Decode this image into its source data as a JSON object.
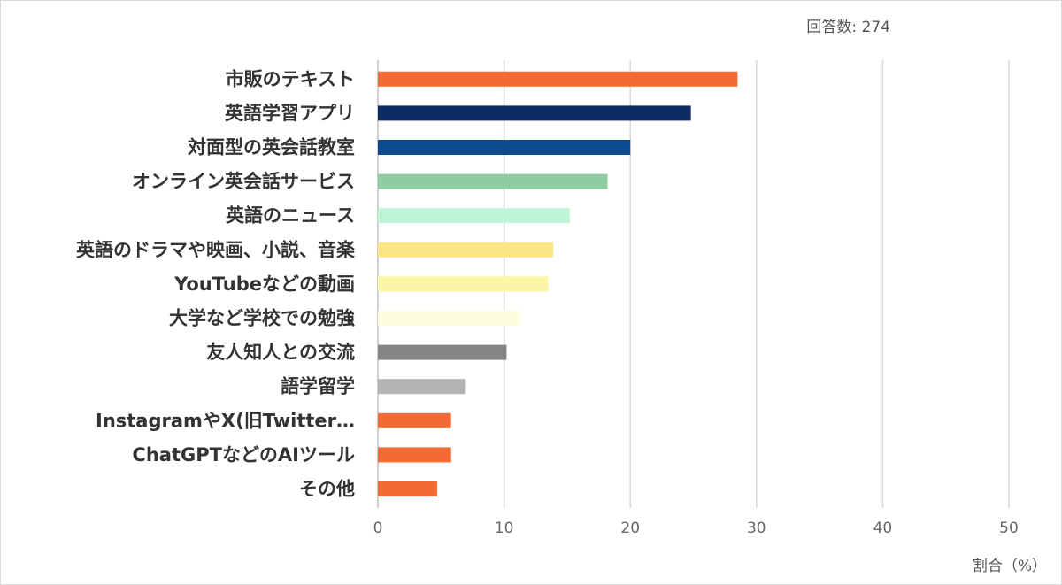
{
  "response_count_text": "回答数: 274",
  "chart_data": {
    "type": "bar",
    "orientation": "horizontal",
    "title": "",
    "xlabel": "割合（%）",
    "ylabel": "",
    "xlim": [
      0,
      50
    ],
    "xticks": [
      0,
      10,
      20,
      30,
      40,
      50
    ],
    "grid": true,
    "categories": [
      "市販のテキスト",
      "英語学習アプリ",
      "対面型の英会話教室",
      "オンライン英会話サービス",
      "英語のニュース",
      "英語のドラマや映画、小説、音楽",
      "YouTubeなどの動画",
      "大学など学校での勉強",
      "友人知人との交流",
      "語学留学",
      "InstagramやX(旧Twitter…",
      "ChatGPTなどのAIツール",
      "その他"
    ],
    "values": [
      28.5,
      24.8,
      20.0,
      18.2,
      15.2,
      13.9,
      13.5,
      11.3,
      10.2,
      6.9,
      5.8,
      5.8,
      4.7
    ],
    "colors": [
      "#f26b35",
      "#0d2a63",
      "#0c4a8e",
      "#8fcca2",
      "#bff5d6",
      "#fbe784",
      "#fbf6a6",
      "#fdfde2",
      "#858585",
      "#b3b3b3",
      "#f26b35",
      "#f26b35",
      "#f26b35"
    ]
  }
}
